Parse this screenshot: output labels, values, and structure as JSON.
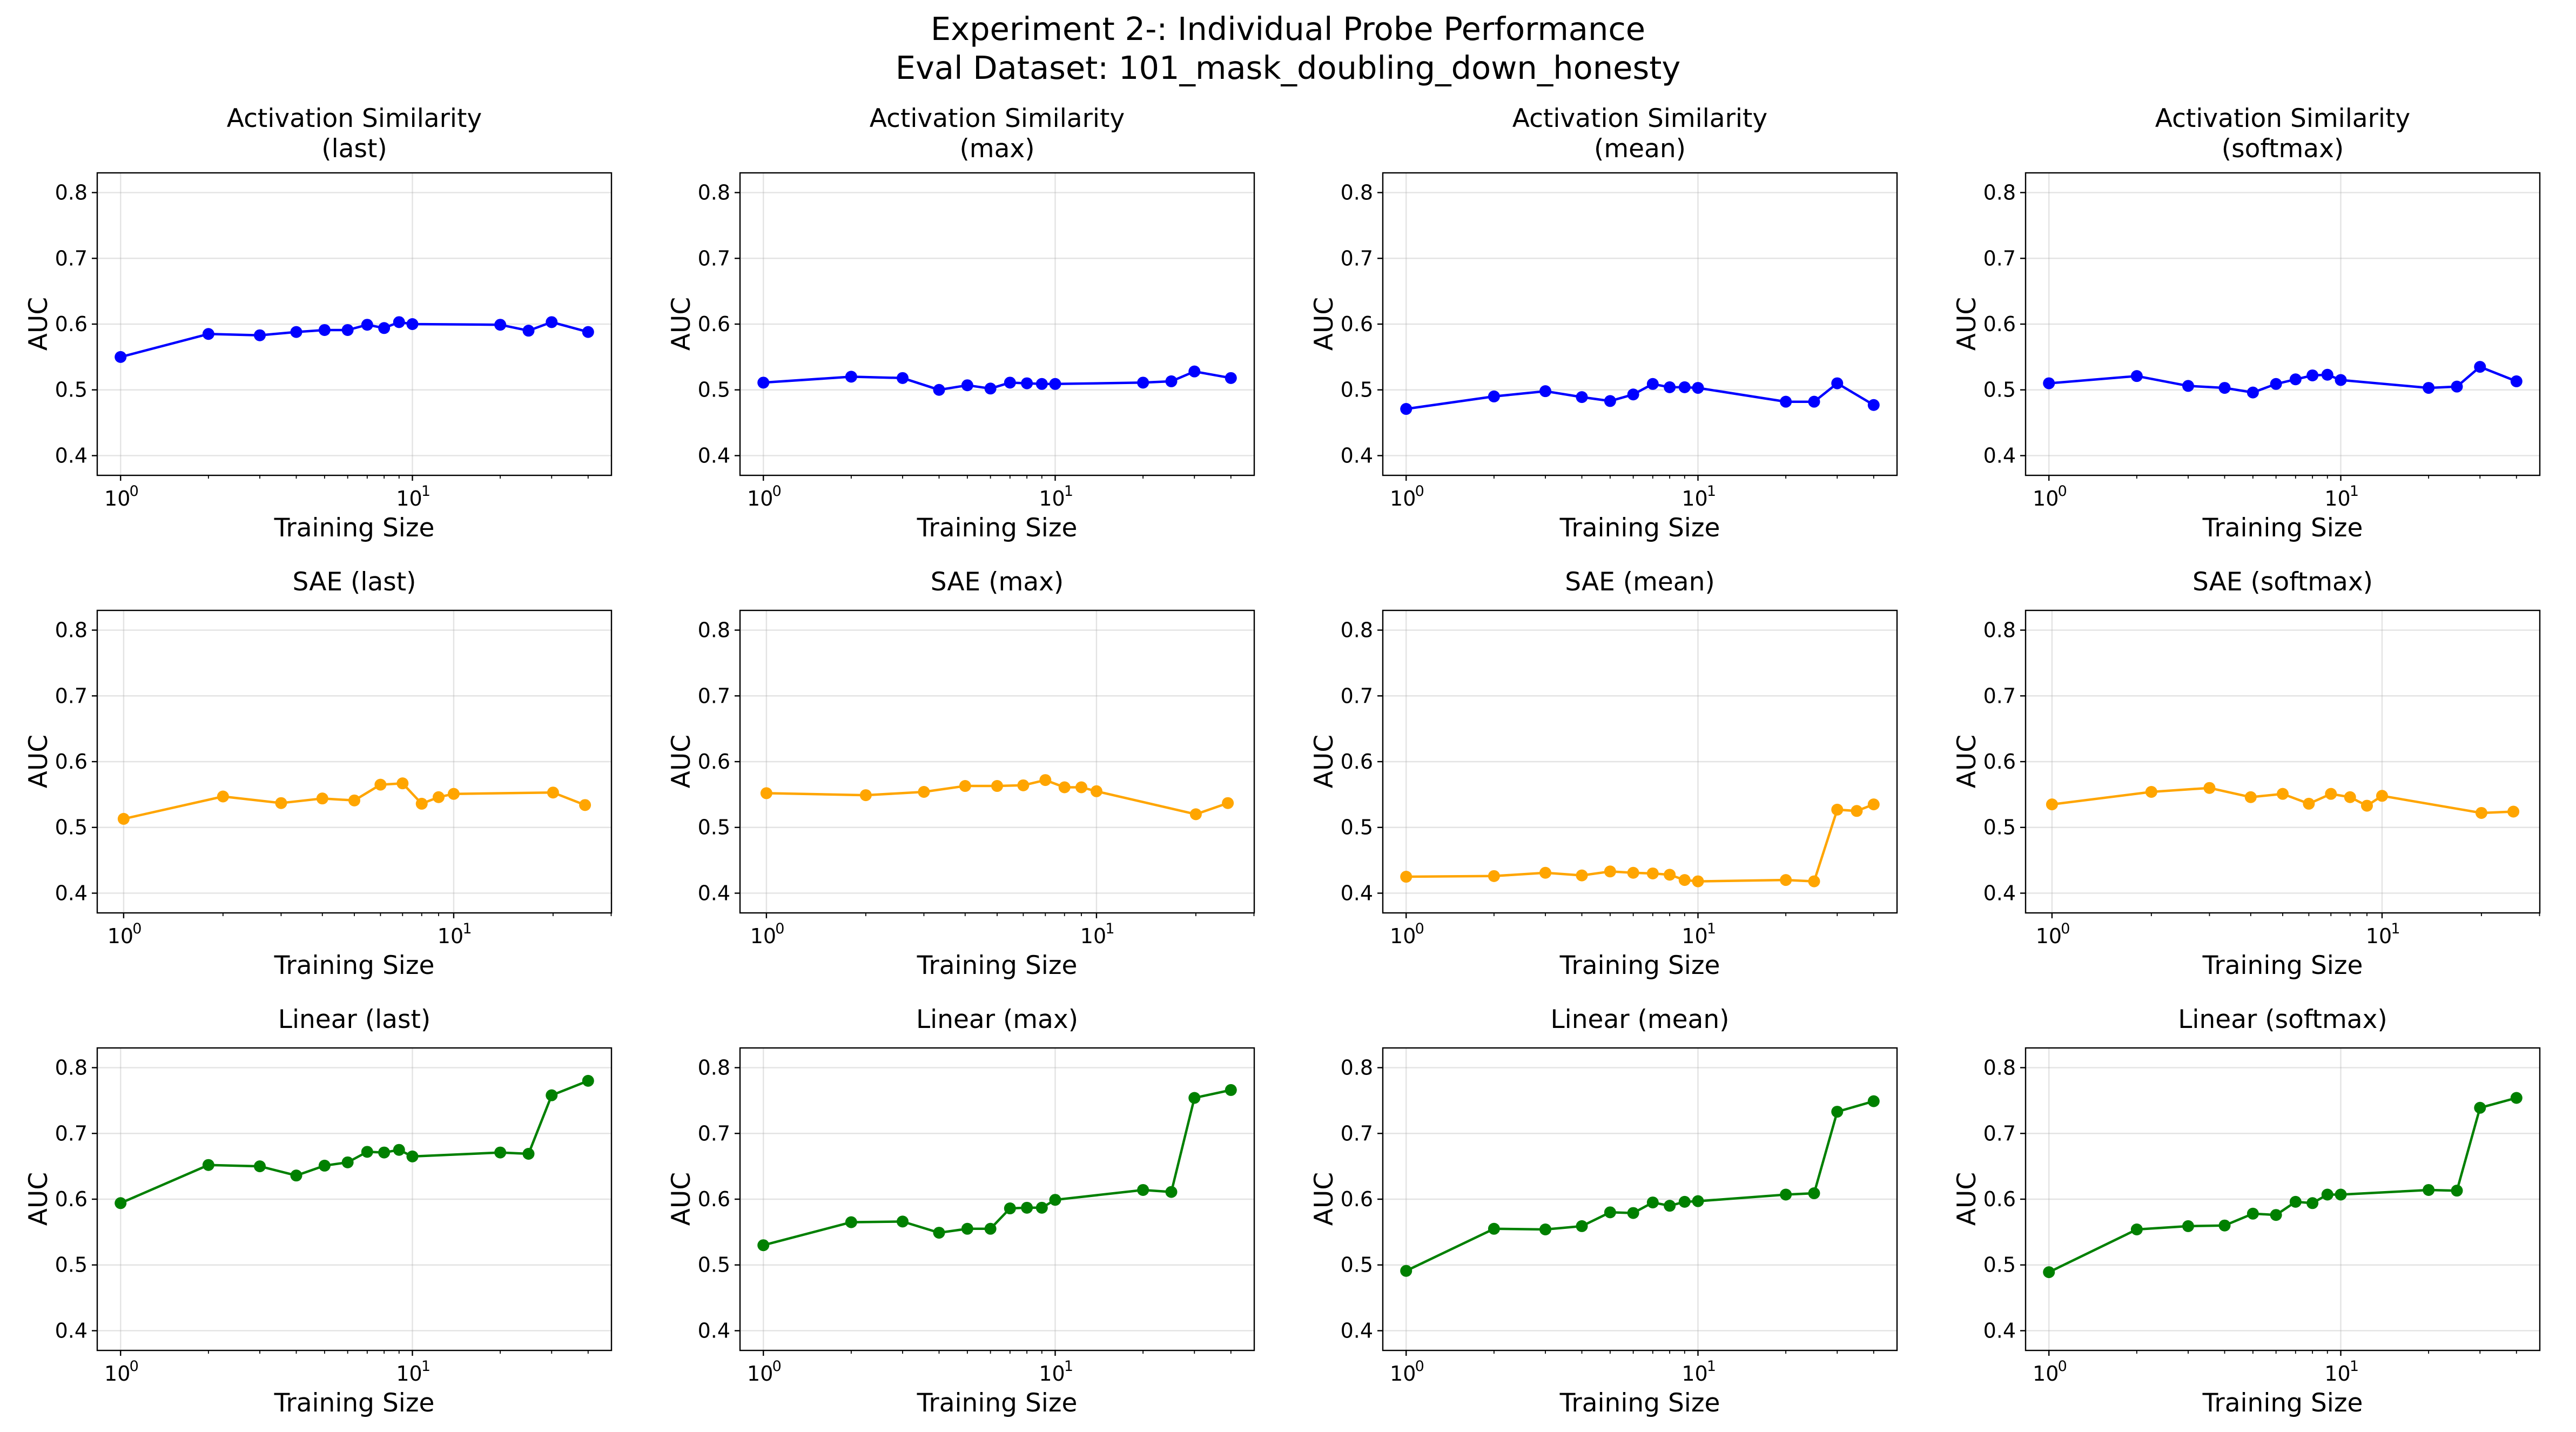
{
  "title": {
    "line1": "Experiment 2-: Individual Probe Performance",
    "line2": "Eval Dataset: 101_mask_doubling_down_honesty"
  },
  "colors": {
    "Activation Similarity": "#0000ff",
    "SAE": "#ffa500",
    "Linear": "#008000"
  },
  "chart_data": [
    {
      "type": "line",
      "probe": "Activation Similarity",
      "aggregation": "last",
      "title_lines": [
        "Activation Similarity",
        "(last)"
      ],
      "xlabel": "Training Size",
      "ylabel": "AUC",
      "xscale": "log",
      "ylim": [
        0.37,
        0.83
      ],
      "yticks": [
        0.4,
        0.5,
        0.6,
        0.7,
        0.8
      ],
      "grid": true,
      "series": [
        {
          "x": [
            1,
            2,
            3,
            4,
            5,
            6,
            7,
            8,
            9,
            10,
            20,
            25,
            30,
            40
          ],
          "y": [
            0.55,
            0.585,
            0.583,
            0.588,
            0.591,
            0.591,
            0.599,
            0.594,
            0.603,
            0.6,
            0.599,
            0.59,
            0.603,
            0.588
          ]
        }
      ]
    },
    {
      "type": "line",
      "probe": "Activation Similarity",
      "aggregation": "max",
      "title_lines": [
        "Activation Similarity",
        "(max)"
      ],
      "xlabel": "Training Size",
      "ylabel": "AUC",
      "xscale": "log",
      "ylim": [
        0.37,
        0.83
      ],
      "yticks": [
        0.4,
        0.5,
        0.6,
        0.7,
        0.8
      ],
      "grid": true,
      "series": [
        {
          "x": [
            1,
            2,
            3,
            4,
            5,
            6,
            7,
            8,
            9,
            10,
            20,
            25,
            30,
            40
          ],
          "y": [
            0.511,
            0.52,
            0.518,
            0.5,
            0.507,
            0.502,
            0.511,
            0.51,
            0.509,
            0.509,
            0.511,
            0.513,
            0.528,
            0.518
          ]
        }
      ]
    },
    {
      "type": "line",
      "probe": "Activation Similarity",
      "aggregation": "mean",
      "title_lines": [
        "Activation Similarity",
        "(mean)"
      ],
      "xlabel": "Training Size",
      "ylabel": "AUC",
      "xscale": "log",
      "ylim": [
        0.37,
        0.83
      ],
      "yticks": [
        0.4,
        0.5,
        0.6,
        0.7,
        0.8
      ],
      "grid": true,
      "series": [
        {
          "x": [
            1,
            2,
            3,
            4,
            5,
            6,
            7,
            8,
            9,
            10,
            20,
            25,
            30,
            40
          ],
          "y": [
            0.471,
            0.49,
            0.498,
            0.489,
            0.483,
            0.493,
            0.509,
            0.504,
            0.504,
            0.503,
            0.482,
            0.482,
            0.51,
            0.477
          ]
        }
      ]
    },
    {
      "type": "line",
      "probe": "Activation Similarity",
      "aggregation": "softmax",
      "title_lines": [
        "Activation Similarity",
        "(softmax)"
      ],
      "xlabel": "Training Size",
      "ylabel": "AUC",
      "xscale": "log",
      "ylim": [
        0.37,
        0.83
      ],
      "yticks": [
        0.4,
        0.5,
        0.6,
        0.7,
        0.8
      ],
      "grid": true,
      "series": [
        {
          "x": [
            1,
            2,
            3,
            4,
            5,
            6,
            7,
            8,
            9,
            10,
            20,
            25,
            30,
            40
          ],
          "y": [
            0.51,
            0.521,
            0.506,
            0.503,
            0.496,
            0.509,
            0.516,
            0.522,
            0.523,
            0.515,
            0.503,
            0.505,
            0.535,
            0.513
          ]
        }
      ]
    },
    {
      "type": "line",
      "probe": "SAE",
      "aggregation": "last",
      "title_lines": [
        "SAE (last)"
      ],
      "xlabel": "Training Size",
      "ylabel": "AUC",
      "xscale": "log",
      "ylim": [
        0.37,
        0.83
      ],
      "yticks": [
        0.4,
        0.5,
        0.6,
        0.7,
        0.8
      ],
      "grid": true,
      "series": [
        {
          "x": [
            1,
            2,
            3,
            4,
            5,
            6,
            7,
            8,
            9,
            10,
            20,
            25
          ],
          "y": [
            0.513,
            0.547,
            0.537,
            0.544,
            0.541,
            0.565,
            0.567,
            0.536,
            0.546,
            0.551,
            0.553,
            0.534
          ]
        }
      ]
    },
    {
      "type": "line",
      "probe": "SAE",
      "aggregation": "max",
      "title_lines": [
        "SAE (max)"
      ],
      "xlabel": "Training Size",
      "ylabel": "AUC",
      "xscale": "log",
      "ylim": [
        0.37,
        0.83
      ],
      "yticks": [
        0.4,
        0.5,
        0.6,
        0.7,
        0.8
      ],
      "grid": true,
      "series": [
        {
          "x": [
            1,
            2,
            3,
            4,
            5,
            6,
            7,
            8,
            9,
            10,
            20,
            25
          ],
          "y": [
            0.552,
            0.549,
            0.554,
            0.563,
            0.563,
            0.564,
            0.572,
            0.561,
            0.561,
            0.555,
            0.52,
            0.537
          ]
        }
      ]
    },
    {
      "type": "line",
      "probe": "SAE",
      "aggregation": "mean",
      "title_lines": [
        "SAE (mean)"
      ],
      "xlabel": "Training Size",
      "ylabel": "AUC",
      "xscale": "log",
      "ylim": [
        0.37,
        0.83
      ],
      "yticks": [
        0.4,
        0.5,
        0.6,
        0.7,
        0.8
      ],
      "grid": true,
      "series": [
        {
          "x": [
            1,
            2,
            3,
            4,
            5,
            6,
            7,
            8,
            9,
            10,
            20,
            25,
            30,
            35,
            40
          ],
          "y": [
            0.425,
            0.426,
            0.431,
            0.427,
            0.433,
            0.431,
            0.43,
            0.428,
            0.42,
            0.418,
            0.42,
            0.418,
            0.527,
            0.525,
            0.535
          ]
        }
      ]
    },
    {
      "type": "line",
      "probe": "SAE",
      "aggregation": "softmax",
      "title_lines": [
        "SAE (softmax)"
      ],
      "xlabel": "Training Size",
      "ylabel": "AUC",
      "xscale": "log",
      "ylim": [
        0.37,
        0.83
      ],
      "yticks": [
        0.4,
        0.5,
        0.6,
        0.7,
        0.8
      ],
      "grid": true,
      "series": [
        {
          "x": [
            1,
            2,
            3,
            4,
            5,
            6,
            7,
            8,
            9,
            10,
            20,
            25
          ],
          "y": [
            0.535,
            0.554,
            0.56,
            0.546,
            0.551,
            0.536,
            0.551,
            0.546,
            0.533,
            0.548,
            0.522,
            0.524
          ]
        }
      ]
    },
    {
      "type": "line",
      "probe": "Linear",
      "aggregation": "last",
      "title_lines": [
        "Linear (last)"
      ],
      "xlabel": "Training Size",
      "ylabel": "AUC",
      "xscale": "log",
      "ylim": [
        0.37,
        0.83
      ],
      "yticks": [
        0.4,
        0.5,
        0.6,
        0.7,
        0.8
      ],
      "grid": true,
      "series": [
        {
          "x": [
            1,
            2,
            3,
            4,
            5,
            6,
            7,
            8,
            9,
            10,
            20,
            25,
            30,
            40
          ],
          "y": [
            0.594,
            0.652,
            0.65,
            0.636,
            0.651,
            0.656,
            0.672,
            0.671,
            0.675,
            0.665,
            0.671,
            0.669,
            0.758,
            0.78
          ]
        }
      ]
    },
    {
      "type": "line",
      "probe": "Linear",
      "aggregation": "max",
      "title_lines": [
        "Linear (max)"
      ],
      "xlabel": "Training Size",
      "ylabel": "AUC",
      "xscale": "log",
      "ylim": [
        0.37,
        0.83
      ],
      "yticks": [
        0.4,
        0.5,
        0.6,
        0.7,
        0.8
      ],
      "grid": true,
      "series": [
        {
          "x": [
            1,
            2,
            3,
            4,
            5,
            6,
            7,
            8,
            9,
            10,
            20,
            25,
            30,
            40
          ],
          "y": [
            0.53,
            0.565,
            0.566,
            0.549,
            0.555,
            0.555,
            0.586,
            0.587,
            0.587,
            0.599,
            0.614,
            0.611,
            0.754,
            0.766
          ]
        }
      ]
    },
    {
      "type": "line",
      "probe": "Linear",
      "aggregation": "mean",
      "title_lines": [
        "Linear (mean)"
      ],
      "xlabel": "Training Size",
      "ylabel": "AUC",
      "xscale": "log",
      "ylim": [
        0.37,
        0.83
      ],
      "yticks": [
        0.4,
        0.5,
        0.6,
        0.7,
        0.8
      ],
      "grid": true,
      "series": [
        {
          "x": [
            1,
            2,
            3,
            4,
            5,
            6,
            7,
            8,
            9,
            10,
            20,
            25,
            30,
            40
          ],
          "y": [
            0.491,
            0.555,
            0.554,
            0.559,
            0.58,
            0.579,
            0.595,
            0.59,
            0.596,
            0.597,
            0.607,
            0.609,
            0.733,
            0.749
          ]
        }
      ]
    },
    {
      "type": "line",
      "probe": "Linear",
      "aggregation": "softmax",
      "title_lines": [
        "Linear (softmax)"
      ],
      "xlabel": "Training Size",
      "ylabel": "AUC",
      "xscale": "log",
      "ylim": [
        0.37,
        0.83
      ],
      "yticks": [
        0.4,
        0.5,
        0.6,
        0.7,
        0.8
      ],
      "grid": true,
      "series": [
        {
          "x": [
            1,
            2,
            3,
            4,
            5,
            6,
            7,
            8,
            9,
            10,
            20,
            25,
            30,
            40
          ],
          "y": [
            0.489,
            0.554,
            0.559,
            0.56,
            0.578,
            0.576,
            0.596,
            0.594,
            0.607,
            0.607,
            0.614,
            0.613,
            0.739,
            0.754
          ]
        }
      ]
    }
  ]
}
